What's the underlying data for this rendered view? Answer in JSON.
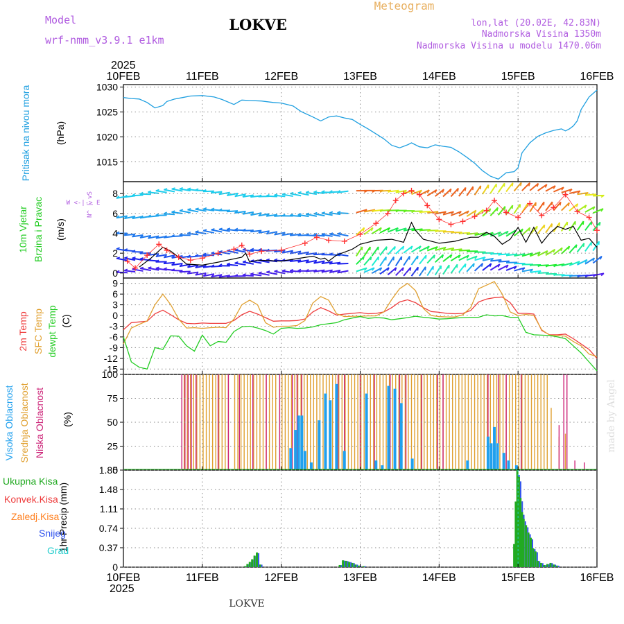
{
  "header": {
    "model_label": "Model",
    "model_name": "wrf-nmm_v3.9.1 e1km",
    "station": "LOKVE",
    "product": "Meteogram",
    "lonlat": "lon,lat (20.02E, 42.83N)",
    "elevation": "Nadmorska Visina 1350m",
    "model_elevation": "Nadmorska Visina u modelu 1470.06m",
    "footer_station": "LOKVE",
    "credit": "made by Angel"
  },
  "colors": {
    "pressure": "#1e9fe0",
    "wind_speed": "#000000",
    "gust_markers": "#ff3030",
    "temp_2m": "#ee3b3b",
    "temp_sfc": "#e0a030",
    "dewpoint": "#22cc22",
    "cloud_high": "#20a0ee",
    "cloud_mid": "#e0a030",
    "cloud_low": "#cc2277",
    "precip_total": "#22aa22",
    "precip_conv": "#ee3b3b",
    "precip_frz": "#ff8020",
    "precip_snow": "#3355ee",
    "precip_grad": "#22cccc",
    "title_purple": "#b05ce0",
    "title_orange": "#e8b060"
  },
  "time_axis": {
    "year": "2025",
    "labels": [
      "10FEB",
      "11FEB",
      "12FEB",
      "13FEB",
      "14FEB",
      "15FEB",
      "16FEB"
    ]
  },
  "chart_data": [
    {
      "id": "pressure",
      "type": "line",
      "ylabel_left": "Pritisak na nivou mora",
      "ylabel_unit": "(hPa)",
      "ylim": [
        1011,
        1030.5
      ],
      "yticks": [
        1015,
        1020,
        1025,
        1030
      ],
      "grid": true,
      "x_days": [
        0,
        0.1,
        0.2,
        0.3,
        0.4,
        0.5,
        0.55,
        0.65,
        0.75,
        0.85,
        1.0,
        1.15,
        1.25,
        1.4,
        1.5,
        1.6,
        1.75,
        1.9,
        2.0,
        2.15,
        2.25,
        2.4,
        2.5,
        2.6,
        2.7,
        2.8,
        2.9,
        3.0,
        3.1,
        3.2,
        3.3,
        3.4,
        3.5,
        3.6,
        3.65,
        3.75,
        3.85,
        3.95,
        4.05,
        4.15,
        4.25,
        4.35,
        4.45,
        4.55,
        4.65,
        4.75,
        4.85,
        4.95,
        5.0,
        5.05,
        5.15,
        5.25,
        5.35,
        5.45,
        5.55,
        5.6,
        5.65,
        5.7,
        5.75,
        5.8,
        5.9,
        6.0
      ],
      "values": [
        1027.9,
        1027.7,
        1027.6,
        1026.9,
        1025.8,
        1026.3,
        1027.1,
        1027.6,
        1027.9,
        1028.2,
        1028.3,
        1028.0,
        1027.5,
        1026.5,
        1027.4,
        1027.3,
        1027.2,
        1026.9,
        1026.8,
        1026.2,
        1025.1,
        1024.0,
        1023.2,
        1024.0,
        1024.2,
        1023.8,
        1023.5,
        1022.5,
        1021.6,
        1020.6,
        1019.6,
        1018.3,
        1017.8,
        1018.4,
        1018.8,
        1018.0,
        1017.8,
        1018.4,
        1018.1,
        1017.9,
        1017.0,
        1015.9,
        1014.7,
        1013.2,
        1012.1,
        1011.5,
        1012.8,
        1013.0,
        1013.8,
        1016.8,
        1018.8,
        1020.1,
        1020.8,
        1021.3,
        1021.6,
        1021.2,
        1021.6,
        1022.2,
        1023.2,
        1025.5,
        1028.0,
        1029.4
      ]
    },
    {
      "id": "wind",
      "type": "line",
      "ylabel_left": "10m Vjetar Brzina i Pravac",
      "ylabel_unit": "(m/s)",
      "ylim": [
        -0.5,
        9.2
      ],
      "yticks": [
        0,
        2,
        4,
        6,
        8
      ],
      "grid": true,
      "compass": "W <-|-> E",
      "compass_ns": "N^ | vS",
      "speed_x": [
        0.2,
        0.35,
        0.5,
        0.6,
        0.7,
        0.8,
        1.0,
        1.2,
        1.5,
        1.55,
        1.6,
        1.7,
        2.0,
        2.4,
        2.5,
        2.55,
        2.6,
        2.7,
        2.9,
        3.0,
        3.2,
        3.4,
        3.55,
        3.6,
        3.65,
        3.7,
        3.8,
        4.0,
        4.2,
        4.3,
        4.4,
        4.5,
        4.6,
        4.7,
        4.8,
        4.9,
        5.0,
        5.1,
        5.2,
        5.3,
        5.4,
        5.5,
        5.6,
        5.7,
        5.8,
        5.9,
        6.0
      ],
      "speed_values": [
        0.6,
        1.5,
        2.6,
        2.2,
        1.6,
        0.9,
        0.8,
        1.1,
        1.6,
        2.0,
        1.1,
        1.3,
        1.2,
        1.7,
        1.4,
        1.5,
        1.2,
        1.8,
        2.4,
        2.9,
        3.3,
        3.4,
        3.1,
        4.1,
        5.1,
        4.3,
        3.4,
        3.0,
        3.2,
        3.4,
        3.6,
        3.6,
        4.1,
        3.7,
        2.9,
        3.4,
        4.6,
        3.1,
        4.6,
        3.0,
        4.0,
        4.7,
        4.4,
        4.7,
        3.3,
        3.5,
        2.6
      ],
      "gust_x": [
        0.05,
        0.15,
        0.3,
        0.45,
        0.55,
        0.7,
        0.85,
        1.0,
        1.2,
        1.4,
        1.5,
        1.6,
        1.75,
        2.0,
        2.3,
        2.45,
        2.6,
        2.8,
        3.0,
        3.2,
        3.35,
        3.45,
        3.55,
        3.65,
        3.75,
        3.85,
        4.0,
        4.15,
        4.3,
        4.45,
        4.6,
        4.7,
        4.85,
        5.0,
        5.15,
        5.3,
        5.45,
        5.6,
        5.75,
        5.9,
        6.0
      ],
      "gust_values": [
        1.2,
        0.5,
        1.8,
        2.9,
        2.3,
        1.6,
        1.3,
        1.5,
        2.0,
        2.4,
        2.8,
        1.9,
        2.2,
        2.3,
        3.0,
        3.6,
        3.3,
        3.2,
        3.9,
        5.0,
        6.0,
        7.3,
        8.0,
        8.3,
        7.9,
        6.8,
        5.4,
        4.9,
        5.2,
        5.7,
        6.3,
        7.3,
        6.1,
        5.6,
        7.0,
        5.8,
        6.6,
        7.9,
        6.2,
        5.6,
        4.3
      ]
    },
    {
      "id": "temperature",
      "type": "line",
      "ylabel_lines": [
        "2m Temp",
        "SFC Temp",
        "dewpt Temp"
      ],
      "ylabel_unit": "(C)",
      "ylim": [
        -16.5,
        10.5
      ],
      "yticks": [
        -15,
        -12,
        -9,
        -6,
        -3,
        0,
        3,
        6,
        9
      ],
      "grid": true,
      "x_days": [
        0,
        0.1,
        0.2,
        0.3,
        0.4,
        0.5,
        0.6,
        0.7,
        0.8,
        0.9,
        1.0,
        1.1,
        1.2,
        1.3,
        1.4,
        1.5,
        1.6,
        1.7,
        1.8,
        1.9,
        2.0,
        2.1,
        2.2,
        2.3,
        2.4,
        2.5,
        2.6,
        2.7,
        2.8,
        2.9,
        3.0,
        3.1,
        3.2,
        3.3,
        3.4,
        3.5,
        3.6,
        3.7,
        3.8,
        3.9,
        4.0,
        4.1,
        4.2,
        4.3,
        4.4,
        4.5,
        4.6,
        4.7,
        4.8,
        4.9,
        5.0,
        5.1,
        5.2,
        5.3,
        5.4,
        5.5,
        5.6,
        5.7,
        5.8,
        5.9,
        6.0
      ],
      "series": [
        {
          "name": "2m Temp",
          "color_key": "temp_2m",
          "values": [
            -4,
            -2,
            -1.8,
            -1.6,
            0.5,
            1.5,
            0.2,
            -1.2,
            -2.2,
            -2.3,
            -2.1,
            -2.2,
            -2.2,
            -2.2,
            -1.4,
            0.2,
            1.2,
            0.4,
            -0.6,
            -1.6,
            -1.5,
            -1.5,
            -1.4,
            -1.0,
            1.0,
            2.2,
            1.3,
            0.1,
            0.4,
            0.6,
            0.8,
            0.5,
            0.6,
            1.0,
            2.2,
            3.8,
            4.4,
            3.6,
            2.2,
            1.1,
            0.9,
            0.6,
            0.5,
            0.6,
            1.4,
            3.8,
            4.6,
            5.0,
            5.2,
            3.6,
            0.6,
            0.6,
            0.4,
            -4.2,
            -5.4,
            -5.4,
            -5.2,
            -6.5,
            -8.0,
            -9.5,
            -12
          ]
        },
        {
          "name": "SFC Temp",
          "color_key": "temp_sfc",
          "values": [
            -8,
            -3.5,
            -2.5,
            -1.5,
            3.0,
            6.0,
            3.0,
            -1.0,
            -3.5,
            -3.4,
            -3.6,
            -3.4,
            -3.3,
            -3.4,
            -1.0,
            3.0,
            4.3,
            3.0,
            -2.0,
            -3.3,
            -3.0,
            -3.0,
            -2.8,
            -1.4,
            3.5,
            5.3,
            4.3,
            0.5,
            -0.3,
            -0.2,
            -0.2,
            -0.1,
            -0.1,
            1.0,
            4.5,
            7.5,
            9.0,
            7.0,
            2.0,
            0.0,
            -0.3,
            -0.4,
            -0.4,
            0.2,
            2.2,
            7.5,
            8.5,
            9.5,
            6.0,
            1.0,
            0.0,
            0.3,
            0.0,
            -4.0,
            -5.5,
            -5.6,
            -5.8,
            -7.3,
            -8.5,
            -10.8,
            -11.5
          ]
        },
        {
          "name": "dewpt Temp",
          "color_key": "dewpoint",
          "values": [
            -6,
            -13,
            -14.5,
            -15,
            -9,
            -9.5,
            -5.7,
            -5.8,
            -8.5,
            -10,
            -5.5,
            -8.5,
            -7.3,
            -7.5,
            -4.5,
            -3.2,
            -3.0,
            -3.5,
            -4.2,
            -5.2,
            -3.6,
            -3.4,
            -3.6,
            -3.5,
            -3.2,
            -2.6,
            -2.3,
            -2.0,
            -1.2,
            -0.7,
            -0.3,
            -0.8,
            -0.6,
            -0.7,
            -1.2,
            -0.9,
            -0.6,
            -0.2,
            -0.5,
            -0.7,
            -1.0,
            -0.9,
            -0.7,
            -0.6,
            -0.5,
            -0.5,
            0.2,
            -0.1,
            0.0,
            -0.5,
            -0.5,
            -4.7,
            -5.4,
            -5.5,
            -5.6,
            -6.0,
            -6.5,
            -8.5,
            -10.5,
            -13.0,
            -15.5
          ]
        }
      ]
    },
    {
      "id": "clouds",
      "type": "bar",
      "ylabel_lines": [
        "Visoka Oblacnost",
        "Srednja Oblacnost",
        "Niska Oblacnost"
      ],
      "ylabel_unit": "(%)",
      "ylim": [
        0,
        100
      ],
      "yticks": [
        0,
        25,
        50,
        75,
        100
      ],
      "grid": true,
      "low_full_x": [
        0.74,
        0.78,
        0.82,
        0.86,
        0.92,
        1.2,
        1.33,
        1.47,
        1.64,
        1.81,
        1.98,
        2.14,
        2.2,
        2.26,
        2.72,
        2.8,
        3.0,
        3.18,
        3.38,
        3.5,
        3.58,
        3.78,
        3.98,
        4.05,
        4.62,
        4.75,
        4.85,
        5.04,
        5.58,
        5.62
      ],
      "low_partial": [
        {
          "x": 5.52,
          "v": 47
        },
        {
          "x": 5.72,
          "v": 10
        },
        {
          "x": 5.84,
          "v": 8
        }
      ],
      "mid_band": [
        0.77,
        5.38
      ],
      "mid_gaps": [
        [
          1.35,
          1.4
        ],
        [
          1.95,
          2.0
        ]
      ],
      "mid_extra": [
        {
          "x": 5.42,
          "v": 65
        },
        {
          "x": 5.52,
          "v": 35
        },
        {
          "x": 5.6,
          "v": 38
        }
      ],
      "high_bars": [
        {
          "x": 2.12,
          "v": 23
        },
        {
          "x": 2.18,
          "v": 42
        },
        {
          "x": 2.22,
          "v": 57
        },
        {
          "x": 2.26,
          "v": 57
        },
        {
          "x": 2.3,
          "v": 20
        },
        {
          "x": 2.38,
          "v": 8
        },
        {
          "x": 2.48,
          "v": 52
        },
        {
          "x": 2.56,
          "v": 80
        },
        {
          "x": 2.62,
          "v": 73
        },
        {
          "x": 2.7,
          "v": 90
        },
        {
          "x": 2.8,
          "v": 20
        },
        {
          "x": 3.08,
          "v": 80
        },
        {
          "x": 3.2,
          "v": 10
        },
        {
          "x": 3.28,
          "v": 5
        },
        {
          "x": 3.36,
          "v": 88
        },
        {
          "x": 3.44,
          "v": 85
        },
        {
          "x": 3.52,
          "v": 70
        },
        {
          "x": 3.66,
          "v": 12
        },
        {
          "x": 4.36,
          "v": 10
        },
        {
          "x": 4.62,
          "v": 35
        },
        {
          "x": 4.66,
          "v": 28
        },
        {
          "x": 4.7,
          "v": 45
        },
        {
          "x": 4.74,
          "v": 28
        },
        {
          "x": 4.82,
          "v": 18
        },
        {
          "x": 4.88,
          "v": 10
        },
        {
          "x": 4.98,
          "v": 5
        }
      ]
    },
    {
      "id": "precip",
      "type": "bar",
      "ylabel_unit": "1hr Precip (mm)",
      "legend": [
        "Ukupna Kisa",
        "Konvek.Kisa",
        "Zaledj.Kisa",
        "Snijeg",
        "Grad"
      ],
      "ylim": [
        0,
        1.85
      ],
      "yticks": [
        0,
        0.37,
        0.74,
        1.11,
        1.48,
        1.85
      ],
      "grid": true,
      "x_days": [
        1.55,
        1.58,
        1.61,
        1.64,
        1.67,
        1.7,
        1.74,
        2.75,
        2.79,
        2.83,
        2.87,
        2.91,
        2.95,
        2.99,
        3.05,
        4.96,
        4.98,
        5.0,
        5.02,
        5.04,
        5.06,
        5.08,
        5.11,
        5.14,
        5.17,
        5.2,
        5.23,
        5.26,
        5.3,
        5.34,
        5.38,
        5.42,
        5.46,
        5.5
      ],
      "values": [
        0.02,
        0.06,
        0.1,
        0.15,
        0.22,
        0.28,
        0.05,
        0.04,
        0.13,
        0.12,
        0.1,
        0.08,
        0.05,
        0.03,
        0.02,
        0.44,
        1.25,
        1.85,
        1.72,
        1.32,
        1.05,
        0.92,
        0.8,
        0.66,
        0.56,
        0.36,
        0.3,
        0.12,
        0.08,
        0.04,
        0.06,
        0.08,
        0.05,
        0.03
      ]
    }
  ]
}
